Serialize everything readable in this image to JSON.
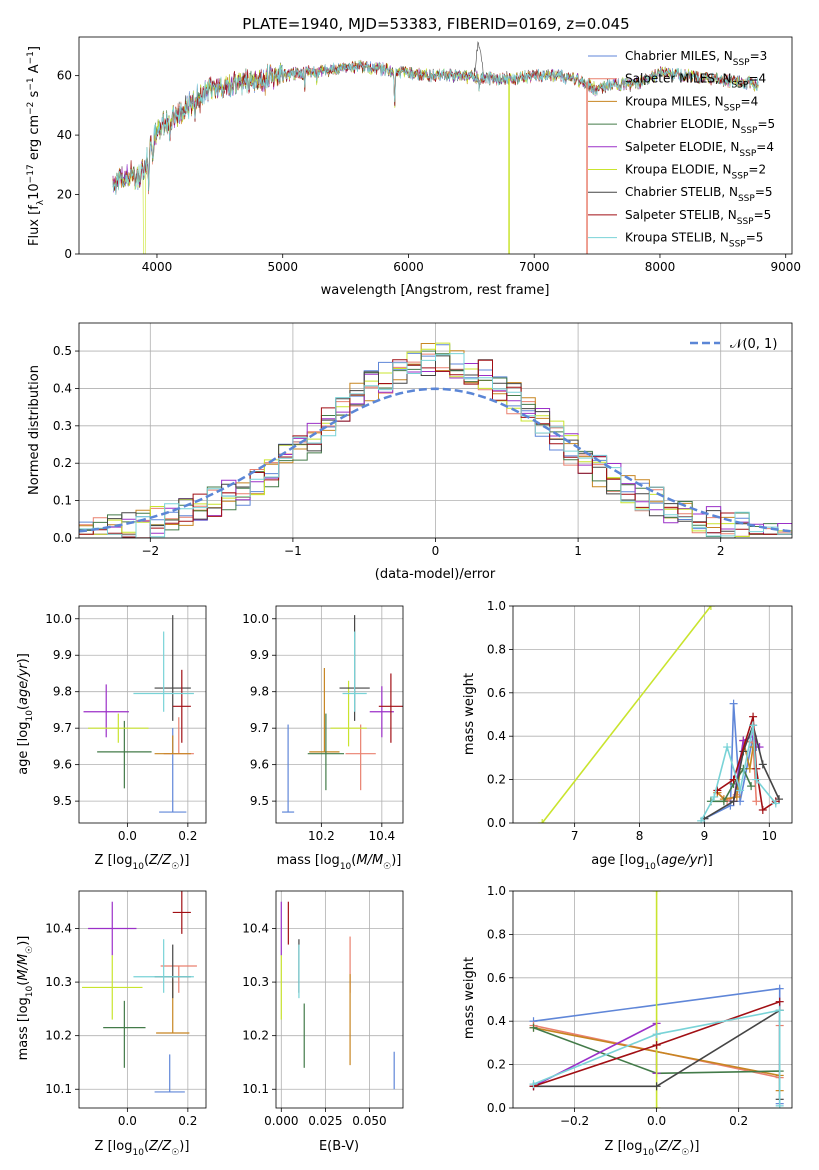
{
  "figure_title": "PLATE=1940, MJD=53383, FIBERID=0169, z=0.045",
  "colors": {
    "chab_miles": "#5f86d8",
    "salp_miles": "#e9806f",
    "krou_miles": "#c78521",
    "chab_elodie": "#437b49",
    "salp_elodie": "#9b30c8",
    "krou_elodie": "#c9e42e",
    "chab_stelib": "#454545",
    "salp_stelib": "#a10f14",
    "krou_stelib": "#79d3d7",
    "normal_curve": "#5b86d6"
  },
  "chart_data": [
    {
      "id": "spectrum",
      "type": "line",
      "xlabel": "wavelength [Angstrom, rest frame]",
      "ylabel": "Flux [f_λ 10^-17 erg cm^-2 s^-1 A^-1]",
      "xlim": [
        3380,
        9050
      ],
      "ylim": [
        0,
        73
      ],
      "xticks": [
        4000,
        5000,
        6000,
        7000,
        8000,
        9000
      ],
      "yticks": [
        0,
        20,
        40,
        60
      ],
      "grid": false,
      "legend_position": "top-right",
      "legend": [
        {
          "key": "chab_miles",
          "label": "Chabrier MILES, N",
          "sub": "SSP",
          "tail": "=3"
        },
        {
          "key": "salp_miles",
          "label": "Salpeter MILES, N",
          "sub": "SSP",
          "tail": "=4"
        },
        {
          "key": "krou_miles",
          "label": "Kroupa MILES, N",
          "sub": "SSP",
          "tail": "=4"
        },
        {
          "key": "chab_elodie",
          "label": "Chabrier ELODIE, N",
          "sub": "SSP",
          "tail": "=5"
        },
        {
          "key": "salp_elodie",
          "label": "Salpeter ELODIE, N",
          "sub": "SSP",
          "tail": "=4"
        },
        {
          "key": "krou_elodie",
          "label": "Kroupa ELODIE, N",
          "sub": "SSP",
          "tail": "=2"
        },
        {
          "key": "chab_stelib",
          "label": "Chabrier STELIB, N",
          "sub": "SSP",
          "tail": "=5"
        },
        {
          "key": "salp_stelib",
          "label": "Salpeter STELIB, N",
          "sub": "SSP",
          "tail": "=5"
        },
        {
          "key": "krou_stelib",
          "label": "Kroupa STELIB, N",
          "sub": "SSP",
          "tail": "=5"
        }
      ],
      "continuum_x": [
        3650,
        3700,
        3780,
        3850,
        3900,
        3950,
        4000,
        4100,
        4200,
        4300,
        4400,
        4500,
        4600,
        4700,
        4800,
        5000,
        5200,
        5400,
        5600,
        5800,
        6000,
        6200,
        6400,
        6600,
        6800,
        7000,
        7200,
        7400,
        7500,
        7600,
        7800,
        8000,
        8200,
        8400,
        8600,
        8800
      ],
      "continuum_y": [
        22,
        25,
        27,
        26,
        29,
        36,
        42,
        45,
        48,
        52,
        55,
        56,
        57,
        58,
        59,
        60,
        61,
        62,
        63,
        62,
        61,
        60,
        60,
        59,
        59,
        60,
        60,
        58,
        55,
        57,
        57,
        61,
        60,
        59,
        58,
        57
      ]
    },
    {
      "id": "residuals",
      "type": "histogram",
      "xlabel": "(data-model)/error",
      "ylabel": "Normed distribution",
      "xlim": [
        -2.5,
        2.5
      ],
      "ylim": [
        0,
        0.575
      ],
      "xticks": [
        -2,
        -1,
        0,
        1,
        2
      ],
      "yticks": [
        0.0,
        0.1,
        0.2,
        0.3,
        0.4,
        0.5
      ],
      "grid": true,
      "legend_position": "top-right",
      "normal_label": "𝒩(0, 1)",
      "bin_width": 0.1
    },
    {
      "id": "z_age",
      "type": "errorbar",
      "xlabel": "Z [log10(Z/Z☉)]",
      "ylabel": "age  [log10(age/yr)]",
      "xlim": [
        -0.16,
        0.26
      ],
      "ylim": [
        9.44,
        10.035
      ],
      "xticks": [
        0.0,
        0.2
      ],
      "yticks": [
        9.5,
        9.6,
        9.7,
        9.8,
        9.9,
        10.0
      ],
      "grid": true,
      "points": [
        {
          "key": "chab_miles",
          "x": 0.15,
          "y": 9.47,
          "xe": 0.045,
          "ye_lo": 0.0,
          "ye_hi": 0.23
        },
        {
          "key": "salp_miles",
          "x": 0.17,
          "y": 9.63,
          "xe": 0.05,
          "ye_lo": 0.0,
          "ye_hi": 0.1
        },
        {
          "key": "krou_miles",
          "x": 0.15,
          "y": 9.63,
          "xe": 0.06,
          "ye_lo": 0.0,
          "ye_hi": 0.05
        },
        {
          "key": "chab_elodie",
          "x": -0.01,
          "y": 9.635,
          "xe": 0.09,
          "ye_lo": 0.1,
          "ye_hi": 0.085
        },
        {
          "key": "salp_elodie",
          "x": -0.07,
          "y": 9.745,
          "xe": 0.075,
          "ye_lo": 0.07,
          "ye_hi": 0.075
        },
        {
          "key": "krou_elodie",
          "x": -0.03,
          "y": 9.7,
          "xe": 0.1,
          "ye_lo": 0.04,
          "ye_hi": 0.04
        },
        {
          "key": "chab_stelib",
          "x": 0.15,
          "y": 9.81,
          "xe": 0.06,
          "ye_lo": 0.09,
          "ye_hi": 0.2
        },
        {
          "key": "salp_stelib",
          "x": 0.18,
          "y": 9.76,
          "xe": 0.03,
          "ye_lo": 0.1,
          "ye_hi": 0.1
        },
        {
          "key": "krou_stelib",
          "x": 0.12,
          "y": 9.795,
          "xe": 0.1,
          "ye_lo": 0.05,
          "ye_hi": 0.17
        }
      ]
    },
    {
      "id": "mass_age",
      "type": "errorbar",
      "xlabel": "mass [log10(M/M☉)]",
      "xlim": [
        10.05,
        10.47
      ],
      "ylim": [
        9.44,
        10.035
      ],
      "xticks": [
        10.2,
        10.4
      ],
      "yticks": [
        9.5,
        9.6,
        9.7,
        9.8,
        9.9,
        10.0
      ],
      "grid": true,
      "points": [
        {
          "key": "chab_miles",
          "x": 10.09,
          "y": 9.47,
          "xe": 0.02,
          "ye_lo": 0.0,
          "ye_hi": 0.24
        },
        {
          "key": "salp_miles",
          "x": 10.33,
          "y": 9.63,
          "xe": 0.05,
          "ye_lo": 0.1,
          "ye_hi": 0.08
        },
        {
          "key": "krou_miles",
          "x": 10.21,
          "y": 9.635,
          "xe": 0.05,
          "ye_lo": 0.0,
          "ye_hi": 0.23
        },
        {
          "key": "chab_elodie",
          "x": 10.215,
          "y": 9.63,
          "xe": 0.06,
          "ye_lo": 0.1,
          "ye_hi": 0.11
        },
        {
          "key": "salp_elodie",
          "x": 10.4,
          "y": 9.745,
          "xe": 0.04,
          "ye_lo": 0.07,
          "ye_hi": 0.07
        },
        {
          "key": "krou_elodie",
          "x": 10.29,
          "y": 9.7,
          "xe": 0.06,
          "ye_lo": 0.05,
          "ye_hi": 0.13
        },
        {
          "key": "chab_stelib",
          "x": 10.31,
          "y": 9.81,
          "xe": 0.05,
          "ye_lo": 0.09,
          "ye_hi": 0.2
        },
        {
          "key": "salp_stelib",
          "x": 10.43,
          "y": 9.76,
          "xe": 0.04,
          "ye_lo": 0.1,
          "ye_hi": 0.09
        },
        {
          "key": "krou_stelib",
          "x": 10.31,
          "y": 9.795,
          "xe": 0.04,
          "ye_lo": 0.05,
          "ye_hi": 0.17
        }
      ]
    },
    {
      "id": "age_weight",
      "type": "line",
      "xlabel": "age  [log10(age/yr)]",
      "ylabel": "mass weight",
      "xlim": [
        6.05,
        10.35
      ],
      "ylim": [
        0,
        1.0
      ],
      "xticks": [
        7,
        8,
        9,
        10
      ],
      "yticks": [
        0.0,
        0.2,
        0.4,
        0.6,
        0.8,
        1.0
      ],
      "grid": true,
      "series": [
        {
          "key": "chab_miles",
          "x": [
            9.0,
            9.4,
            9.45,
            9.55,
            9.75,
            9.8
          ],
          "y": [
            0.02,
            0.08,
            0.55,
            0.1,
            0.4,
            0.35
          ]
        },
        {
          "key": "salp_miles",
          "x": [
            9.2,
            9.35,
            9.5,
            9.6,
            9.75,
            9.8
          ],
          "y": [
            0.14,
            0.1,
            0.13,
            0.38,
            0.37,
            0.1
          ]
        },
        {
          "key": "krou_miles",
          "x": [
            9.2,
            9.3,
            9.5,
            9.6,
            9.7,
            9.75
          ],
          "y": [
            0.14,
            0.11,
            0.12,
            0.38,
            0.25,
            0.35
          ]
        },
        {
          "key": "chab_elodie",
          "x": [
            9.1,
            9.3,
            9.45,
            9.6,
            9.72
          ],
          "y": [
            0.1,
            0.1,
            0.18,
            0.25,
            0.17
          ]
        },
        {
          "key": "salp_elodie",
          "x": [
            9.45,
            9.6,
            9.75,
            9.85
          ],
          "y": [
            0.1,
            0.38,
            0.4,
            0.35
          ]
        },
        {
          "key": "krou_elodie",
          "x": [
            6.5,
            9.1
          ],
          "y": [
            0.0,
            1.0
          ]
        },
        {
          "key": "chab_stelib",
          "x": [
            9.0,
            9.45,
            9.6,
            9.75,
            9.9,
            10.15
          ],
          "y": [
            0.02,
            0.1,
            0.33,
            0.45,
            0.27,
            0.11
          ]
        },
        {
          "key": "salp_stelib",
          "x": [
            9.2,
            9.45,
            9.75,
            9.8,
            9.9,
            10.1
          ],
          "y": [
            0.15,
            0.2,
            0.49,
            0.25,
            0.06,
            0.1
          ]
        },
        {
          "key": "krou_stelib",
          "x": [
            8.95,
            9.15,
            9.35,
            9.55,
            9.75,
            9.8,
            10.1
          ],
          "y": [
            0.01,
            0.12,
            0.35,
            0.15,
            0.45,
            0.2,
            0.09
          ]
        }
      ]
    },
    {
      "id": "z_mass",
      "type": "errorbar",
      "xlabel": "Z [log10(Z/Z☉)]",
      "ylabel": "mass [log10(M/M☉)]",
      "xlim": [
        -0.16,
        0.26
      ],
      "ylim": [
        10.065,
        10.47
      ],
      "xticks": [
        0.0,
        0.2
      ],
      "yticks": [
        10.1,
        10.2,
        10.3,
        10.4
      ],
      "grid": true,
      "points": [
        {
          "key": "chab_miles",
          "x": 0.14,
          "y": 10.095,
          "xe": 0.05,
          "ye_lo": 0.0,
          "ye_hi": 0.07
        },
        {
          "key": "salp_miles",
          "x": 0.17,
          "y": 10.33,
          "xe": 0.06,
          "ye_lo": 0.05,
          "ye_hi": 0.0
        },
        {
          "key": "krou_miles",
          "x": 0.15,
          "y": 10.205,
          "xe": 0.055,
          "ye_lo": 0.0,
          "ye_hi": 0.1
        },
        {
          "key": "chab_elodie",
          "x": -0.01,
          "y": 10.215,
          "xe": 0.07,
          "ye_lo": 0.075,
          "ye_hi": 0.05
        },
        {
          "key": "salp_elodie",
          "x": -0.05,
          "y": 10.4,
          "xe": 0.08,
          "ye_lo": 0.05,
          "ye_hi": 0.05
        },
        {
          "key": "krou_elodie",
          "x": -0.05,
          "y": 10.29,
          "xe": 0.1,
          "ye_lo": 0.06,
          "ye_hi": 0.06
        },
        {
          "key": "chab_stelib",
          "x": 0.15,
          "y": 10.31,
          "xe": 0.06,
          "ye_lo": 0.04,
          "ye_hi": 0.06
        },
        {
          "key": "salp_stelib",
          "x": 0.18,
          "y": 10.43,
          "xe": 0.03,
          "ye_lo": 0.04,
          "ye_hi": 0.04
        },
        {
          "key": "krou_stelib",
          "x": 0.12,
          "y": 10.31,
          "xe": 0.1,
          "ye_lo": 0.03,
          "ye_hi": 0.07
        }
      ]
    },
    {
      "id": "ebv_mass",
      "type": "errorbar",
      "xlabel": "E(B-V)",
      "xlim": [
        -0.003,
        0.069
      ],
      "ylim": [
        10.065,
        10.47
      ],
      "xticks": [
        0.0,
        0.025,
        0.05
      ],
      "xtick_labels": [
        "0.000",
        "0.025",
        "0.050"
      ],
      "yticks": [
        10.1,
        10.2,
        10.3,
        10.4
      ],
      "grid": true,
      "points": [
        {
          "key": "chab_miles",
          "x": 0.064,
          "y": 10.1,
          "xe": 0.0,
          "ye_lo": 0.0,
          "ye_hi": 0.07
        },
        {
          "key": "salp_miles",
          "x": 0.039,
          "y": 10.33,
          "xe": 0.0,
          "ye_lo": 0.05,
          "ye_hi": 0.055
        },
        {
          "key": "krou_miles",
          "x": 0.039,
          "y": 10.23,
          "xe": 0.0,
          "ye_lo": 0.085,
          "ye_hi": 0.085
        },
        {
          "key": "chab_elodie",
          "x": 0.013,
          "y": 10.2,
          "xe": 0.0,
          "ye_lo": 0.06,
          "ye_hi": 0.06
        },
        {
          "key": "salp_elodie",
          "x": 0.0,
          "y": 10.4,
          "xe": 0.0,
          "ye_lo": 0.05,
          "ye_hi": 0.05
        },
        {
          "key": "krou_elodie",
          "x": 0.0,
          "y": 10.29,
          "xe": 0.0,
          "ye_lo": 0.06,
          "ye_hi": 0.06
        },
        {
          "key": "chab_stelib",
          "x": 0.01,
          "y": 10.32,
          "xe": 0.0,
          "ye_lo": 0.04,
          "ye_hi": 0.06
        },
        {
          "key": "salp_stelib",
          "x": 0.004,
          "y": 10.41,
          "xe": 0.0,
          "ye_lo": 0.04,
          "ye_hi": 0.04
        },
        {
          "key": "krou_stelib",
          "x": 0.01,
          "y": 10.31,
          "xe": 0.0,
          "ye_lo": 0.04,
          "ye_hi": 0.06
        }
      ]
    },
    {
      "id": "z_weight",
      "type": "line",
      "xlabel": "Z [log10(Z/Z☉)]",
      "ylabel": "mass weight",
      "xlim": [
        -0.35,
        0.33
      ],
      "ylim": [
        0,
        1.0
      ],
      "xticks": [
        -0.2,
        0.0,
        0.2
      ],
      "yticks": [
        0.0,
        0.2,
        0.4,
        0.6,
        0.8,
        1.0
      ],
      "grid": true,
      "series": [
        {
          "key": "chab_miles",
          "x": [
            -0.3,
            0.3,
            0.3
          ],
          "y": [
            0.4,
            0.55,
            0.02
          ]
        },
        {
          "key": "salp_miles",
          "x": [
            -0.3,
            0.3,
            0.3
          ],
          "y": [
            0.38,
            0.14,
            0.38
          ]
        },
        {
          "key": "krou_miles",
          "x": [
            -0.3,
            0.3,
            0.3
          ],
          "y": [
            0.37,
            0.15,
            0.08
          ]
        },
        {
          "key": "chab_elodie",
          "x": [
            -0.3,
            0.0,
            0.3
          ],
          "y": [
            0.37,
            0.16,
            0.17
          ]
        },
        {
          "key": "salp_elodie",
          "x": [
            -0.3,
            0.0,
            0.0
          ],
          "y": [
            0.1,
            0.39,
            0.16
          ]
        },
        {
          "key": "krou_elodie",
          "x": [
            0.0,
            0.0
          ],
          "y": [
            0.0,
            1.0
          ]
        },
        {
          "key": "chab_stelib",
          "x": [
            -0.3,
            0.0,
            0.3,
            0.3
          ],
          "y": [
            0.1,
            0.1,
            0.45,
            0.04
          ]
        },
        {
          "key": "salp_stelib",
          "x": [
            -0.3,
            0.0,
            0.3
          ],
          "y": [
            0.1,
            0.29,
            0.49
          ]
        },
        {
          "key": "krou_stelib",
          "x": [
            -0.3,
            0.0,
            0.3,
            0.3
          ],
          "y": [
            0.11,
            0.34,
            0.45,
            0.01
          ]
        }
      ]
    }
  ]
}
